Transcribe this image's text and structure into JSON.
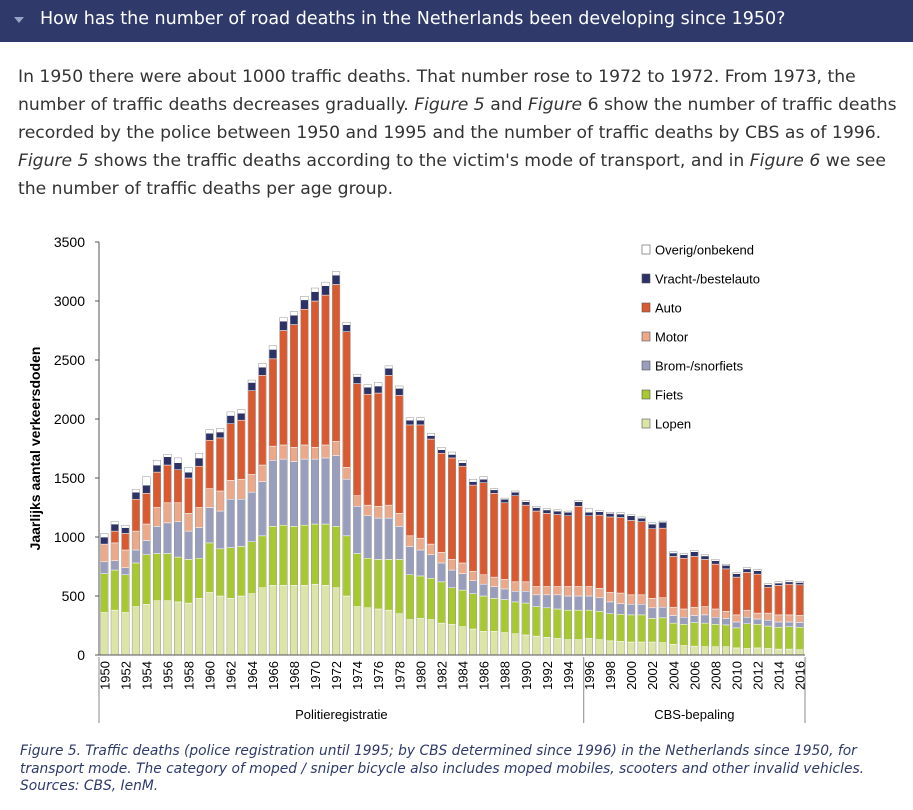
{
  "header": {
    "title": "How has the number of road deaths in the Netherlands been developing since 1950?"
  },
  "intro": {
    "p1": "In 1950 there were about 1000 traffic deaths. That number rose to 1972 to 1972. From 1973, the number of traffic deaths decreases gradually. ",
    "fig5a": "Figure 5",
    "p2": " and ",
    "fig6a": "Figure",
    "p3": " 6 show the number of traffic deaths recorded by the police between 1950 and 1995 and the number of traffic deaths by CBS as of 1996. ",
    "fig5b": "Figure 5",
    "p4": " shows the traffic deaths according to the victim's mode of transport, and in ",
    "fig6b": "Figure 6",
    "p5": " we see the number of traffic deaths per age group."
  },
  "caption": {
    "line1": "Figure 5. Traffic deaths (police registration until 1995; by CBS determined since 1996) in the Netherlands since 1950, for",
    "line2": "transport mode. The category of moped / sniper bicycle also includes moped mobiles, scooters and other invalid vehicles.",
    "line3": "Sources: CBS, IenM."
  },
  "chart_data": {
    "type": "bar",
    "stacked": true,
    "ylabel": "Jaarlijks aantal verkeersdoden",
    "ylim": [
      0,
      3500
    ],
    "yticks": [
      0,
      500,
      1000,
      1500,
      2000,
      2500,
      3000,
      3500
    ],
    "x": [
      1950,
      1951,
      1952,
      1953,
      1954,
      1955,
      1956,
      1957,
      1958,
      1959,
      1960,
      1961,
      1962,
      1963,
      1964,
      1965,
      1966,
      1967,
      1968,
      1969,
      1970,
      1971,
      1972,
      1973,
      1974,
      1975,
      1976,
      1977,
      1978,
      1979,
      1980,
      1981,
      1982,
      1983,
      1984,
      1985,
      1986,
      1987,
      1988,
      1989,
      1990,
      1991,
      1992,
      1993,
      1994,
      1995,
      1996,
      1997,
      1998,
      1999,
      2000,
      2001,
      2002,
      2003,
      2004,
      2005,
      2006,
      2007,
      2008,
      2009,
      2010,
      2011,
      2012,
      2013,
      2014,
      2015,
      2016
    ],
    "xtick_labels": [
      "1950",
      "1952",
      "1954",
      "1956",
      "1958",
      "1960",
      "1962",
      "1964",
      "1966",
      "1968",
      "1970",
      "1972",
      "1974",
      "1976",
      "1978",
      "1980",
      "1982",
      "1984",
      "1986",
      "1988",
      "1990",
      "1992",
      "1994",
      "1996",
      "1998",
      "2000",
      "2002",
      "2004",
      "2006",
      "2008",
      "2010",
      "2012",
      "2014",
      "2016"
    ],
    "groups": [
      {
        "label": "Politieregistratie",
        "from": 1950,
        "to": 1995
      },
      {
        "label": "CBS-bepaling",
        "from": 1996,
        "to": 2016
      }
    ],
    "legend_position": "top-right",
    "series": [
      {
        "name": "Lopen",
        "color": "#dde5a6",
        "values": [
          360,
          380,
          360,
          410,
          430,
          460,
          460,
          450,
          440,
          480,
          530,
          500,
          480,
          500,
          520,
          570,
          590,
          590,
          590,
          590,
          600,
          590,
          570,
          500,
          410,
          400,
          390,
          380,
          350,
          300,
          310,
          300,
          270,
          260,
          240,
          220,
          200,
          200,
          190,
          180,
          170,
          160,
          150,
          140,
          130,
          130,
          140,
          130,
          120,
          115,
          110,
          110,
          110,
          105,
          90,
          80,
          75,
          70,
          70,
          70,
          60,
          55,
          60,
          55,
          50,
          50,
          45
        ]
      },
      {
        "name": "Fiets",
        "color": "#a8c832",
        "values": [
          330,
          340,
          320,
          370,
          420,
          400,
          400,
          380,
          370,
          340,
          420,
          400,
          430,
          420,
          440,
          440,
          500,
          510,
          500,
          510,
          510,
          520,
          520,
          510,
          450,
          420,
          420,
          430,
          460,
          380,
          360,
          350,
          350,
          310,
          310,
          300,
          300,
          280,
          280,
          270,
          270,
          250,
          250,
          250,
          250,
          250,
          240,
          240,
          230,
          230,
          230,
          230,
          200,
          210,
          180,
          180,
          200,
          200,
          190,
          185,
          170,
          210,
          200,
          190,
          185,
          190,
          190
        ]
      },
      {
        "name": "Brom-/snorfiets",
        "color": "#9a9ebd",
        "values": [
          100,
          80,
          60,
          110,
          120,
          230,
          260,
          300,
          240,
          260,
          300,
          320,
          410,
          400,
          420,
          460,
          560,
          560,
          550,
          560,
          550,
          560,
          600,
          480,
          400,
          360,
          350,
          350,
          280,
          240,
          220,
          200,
          160,
          150,
          140,
          110,
          100,
          100,
          90,
          90,
          100,
          100,
          110,
          120,
          120,
          120,
          120,
          115,
          100,
          90,
          90,
          90,
          90,
          90,
          65,
          60,
          60,
          70,
          60,
          55,
          50,
          55,
          45,
          50,
          45,
          40,
          40
        ]
      },
      {
        "name": "Motor",
        "color": "#eba98a",
        "values": [
          150,
          150,
          150,
          160,
          140,
          160,
          170,
          160,
          150,
          170,
          160,
          170,
          160,
          170,
          150,
          140,
          120,
          120,
          120,
          120,
          100,
          110,
          120,
          100,
          90,
          90,
          100,
          110,
          110,
          90,
          100,
          90,
          90,
          90,
          90,
          80,
          80,
          80,
          80,
          80,
          80,
          70,
          70,
          70,
          80,
          80,
          80,
          80,
          80,
          90,
          80,
          80,
          80,
          80,
          70,
          70,
          70,
          70,
          70,
          60,
          60,
          60,
          50,
          60,
          60,
          60,
          60
        ]
      },
      {
        "name": "Auto",
        "color": "#d95a30",
        "values": [
          0,
          100,
          140,
          270,
          260,
          300,
          320,
          280,
          300,
          350,
          410,
          450,
          480,
          500,
          710,
          760,
          740,
          970,
          1040,
          1150,
          1240,
          1270,
          1330,
          1150,
          950,
          940,
          960,
          1100,
          1000,
          940,
          960,
          890,
          840,
          860,
          820,
          730,
          780,
          710,
          650,
          730,
          650,
          640,
          620,
          610,
          600,
          680,
          600,
          620,
          640,
          640,
          630,
          620,
          590,
          590,
          430,
          430,
          430,
          400,
          380,
          360,
          320,
          320,
          330,
          220,
          250,
          260,
          260
        ]
      },
      {
        "name": "Vracht-/bestelauto",
        "color": "#2c3266",
        "values": [
          60,
          60,
          50,
          60,
          70,
          60,
          70,
          60,
          50,
          70,
          60,
          50,
          70,
          60,
          70,
          70,
          80,
          80,
          80,
          80,
          80,
          80,
          80,
          60,
          60,
          60,
          60,
          60,
          60,
          40,
          40,
          30,
          30,
          30,
          30,
          30,
          30,
          30,
          30,
          30,
          30,
          30,
          30,
          30,
          30,
          40,
          30,
          30,
          30,
          30,
          40,
          30,
          40,
          50,
          30,
          30,
          40,
          30,
          30,
          30,
          30,
          30,
          30,
          20,
          20,
          20,
          20
        ]
      },
      {
        "name": "Overig/onbekend",
        "color": "#ffffff",
        "values": [
          30,
          20,
          20,
          20,
          70,
          40,
          20,
          40,
          40,
          40,
          30,
          30,
          30,
          30,
          20,
          30,
          30,
          30,
          30,
          30,
          30,
          30,
          30,
          20,
          20,
          20,
          30,
          20,
          20,
          20,
          20,
          20,
          20,
          20,
          20,
          20,
          20,
          10,
          10,
          10,
          10,
          10,
          10,
          10,
          10,
          10,
          30,
          10,
          10,
          10,
          10,
          10,
          10,
          10,
          10,
          10,
          10,
          10,
          10,
          10,
          10,
          10,
          10,
          10,
          10,
          10,
          10
        ]
      }
    ]
  }
}
